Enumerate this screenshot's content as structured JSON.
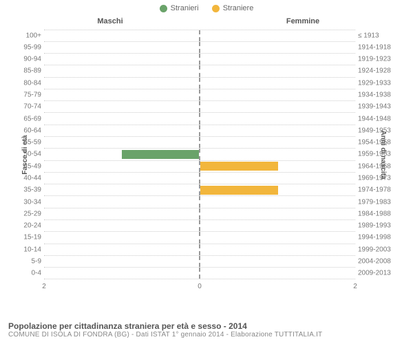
{
  "legend": {
    "male": {
      "label": "Stranieri",
      "color": "#6aa36a"
    },
    "female": {
      "label": "Straniere",
      "color": "#f2b63c"
    }
  },
  "headers": {
    "male": "Maschi",
    "female": "Femmine"
  },
  "axis": {
    "left_title": "Fasce di età",
    "right_title": "Anni di nascita",
    "x_max": 2,
    "x_ticks": [
      2,
      0,
      2
    ]
  },
  "rows": [
    {
      "age": "100+",
      "years": "≤ 1913",
      "m": 0,
      "f": 0
    },
    {
      "age": "95-99",
      "years": "1914-1918",
      "m": 0,
      "f": 0
    },
    {
      "age": "90-94",
      "years": "1919-1923",
      "m": 0,
      "f": 0
    },
    {
      "age": "85-89",
      "years": "1924-1928",
      "m": 0,
      "f": 0
    },
    {
      "age": "80-84",
      "years": "1929-1933",
      "m": 0,
      "f": 0
    },
    {
      "age": "75-79",
      "years": "1934-1938",
      "m": 0,
      "f": 0
    },
    {
      "age": "70-74",
      "years": "1939-1943",
      "m": 0,
      "f": 0
    },
    {
      "age": "65-69",
      "years": "1944-1948",
      "m": 0,
      "f": 0
    },
    {
      "age": "60-64",
      "years": "1949-1953",
      "m": 0,
      "f": 0
    },
    {
      "age": "55-59",
      "years": "1954-1958",
      "m": 0,
      "f": 0
    },
    {
      "age": "50-54",
      "years": "1959-1963",
      "m": 1,
      "f": 0
    },
    {
      "age": "45-49",
      "years": "1964-1968",
      "m": 0,
      "f": 1
    },
    {
      "age": "40-44",
      "years": "1969-1973",
      "m": 0,
      "f": 0
    },
    {
      "age": "35-39",
      "years": "1974-1978",
      "m": 0,
      "f": 1
    },
    {
      "age": "30-34",
      "years": "1979-1983",
      "m": 0,
      "f": 0
    },
    {
      "age": "25-29",
      "years": "1984-1988",
      "m": 0,
      "f": 0
    },
    {
      "age": "20-24",
      "years": "1989-1993",
      "m": 0,
      "f": 0
    },
    {
      "age": "15-19",
      "years": "1994-1998",
      "m": 0,
      "f": 0
    },
    {
      "age": "10-14",
      "years": "1999-2003",
      "m": 0,
      "f": 0
    },
    {
      "age": "5-9",
      "years": "2004-2008",
      "m": 0,
      "f": 0
    },
    {
      "age": "0-4",
      "years": "2009-2013",
      "m": 0,
      "f": 0
    }
  ],
  "caption": {
    "title": "Popolazione per cittadinanza straniera per età e sesso - 2014",
    "subtitle": "COMUNE DI ISOLA DI FONDRA (BG) - Dati ISTAT 1° gennaio 2014 - Elaborazione TUTTITALIA.IT"
  },
  "styling": {
    "background": "#ffffff",
    "grid_color": "#cccccc",
    "divider_color": "#999999",
    "text_color": "#777777",
    "header_color": "#555555",
    "age_label_fontsize": 10,
    "header_fontsize": 11,
    "caption_title_fontsize": 12,
    "caption_sub_fontsize": 10
  }
}
